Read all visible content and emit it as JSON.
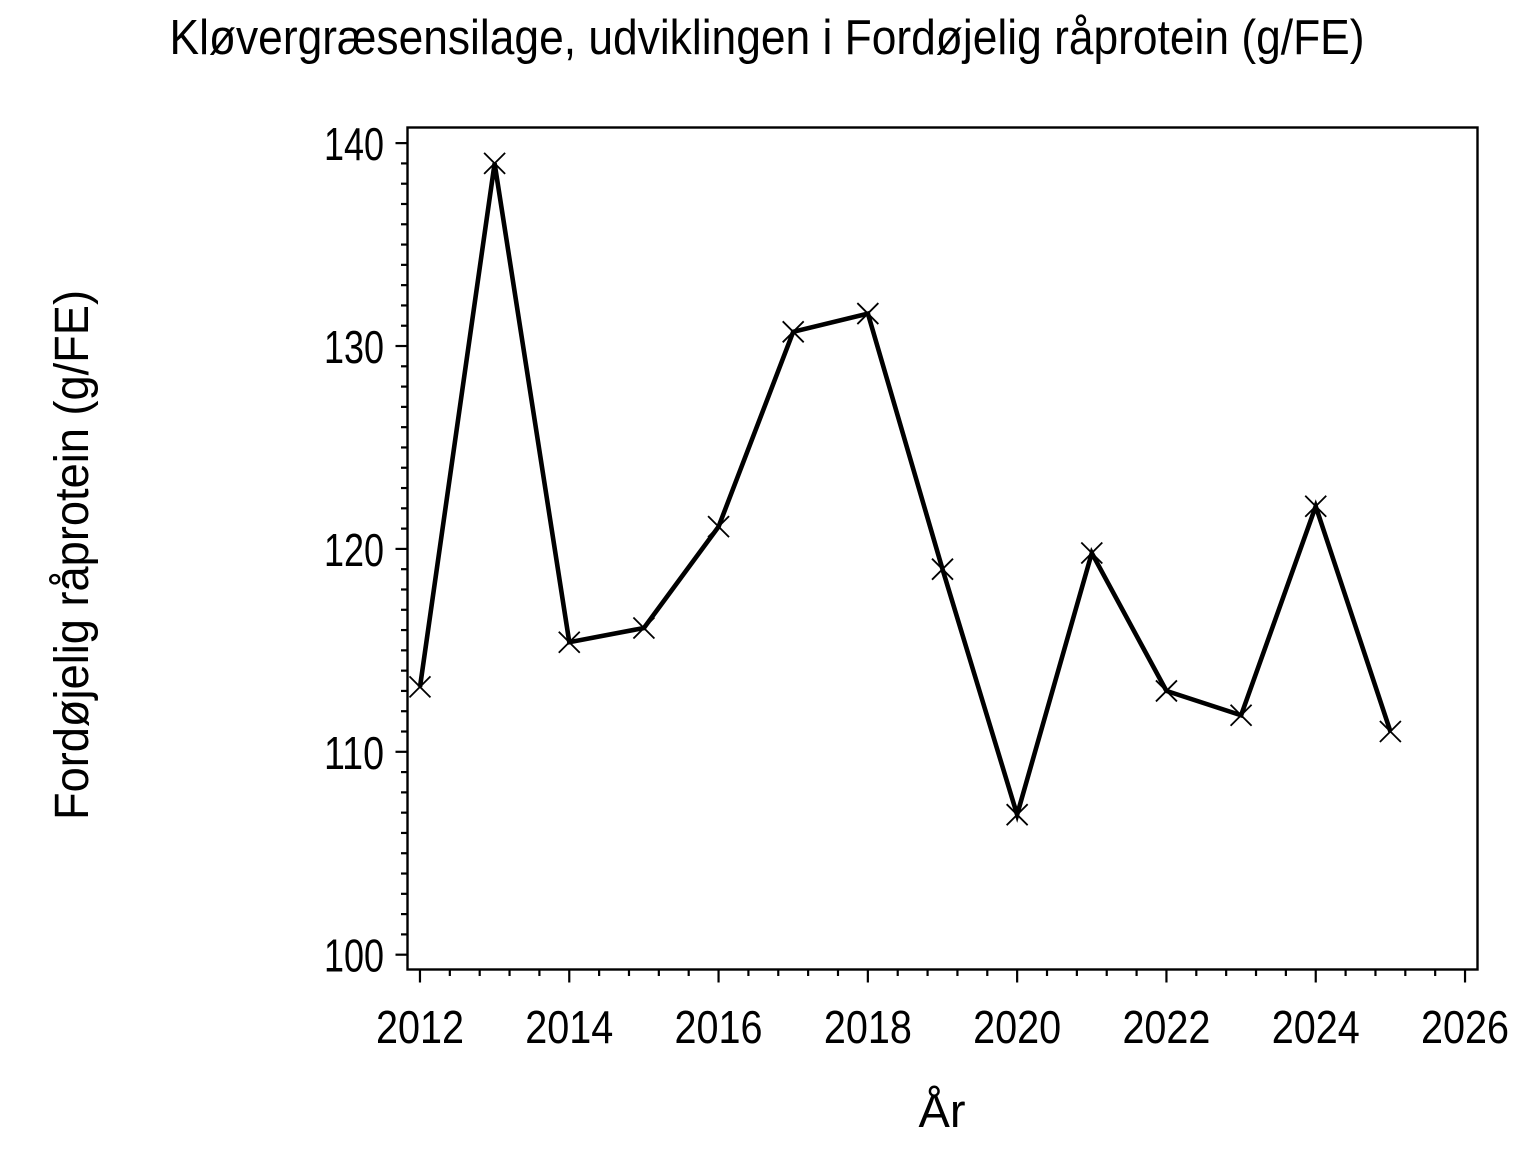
{
  "chart_data": {
    "type": "line",
    "title": "Kløvergræsensilage, udviklingen i Fordøjelig råprotein (g/FE)",
    "xlabel": "År",
    "ylabel": "Fordøjelig råprotein (g/FE)",
    "series": [
      {
        "name": "Fordøjelig råprotein (g/FE)",
        "x": [
          2012,
          2013,
          2014,
          2015,
          2016,
          2017,
          2018,
          2019,
          2020,
          2021,
          2022,
          2023,
          2024,
          2025
        ],
        "values": [
          113.2,
          139.0,
          115.4,
          116.1,
          121.1,
          130.7,
          131.6,
          119.0,
          106.9,
          119.8,
          113.0,
          111.8,
          122.1,
          111.0
        ]
      }
    ],
    "marker": "x",
    "line_color": "#000000",
    "background_color": "#ffffff",
    "grid": false,
    "legend": false,
    "xlim": [
      2011.833,
      2026.167
    ],
    "ylim": [
      99.27,
      140.77
    ],
    "x_ticks_major": [
      2012,
      2014,
      2016,
      2018,
      2020,
      2022,
      2024,
      2026
    ],
    "x_tick_labels": [
      "2012",
      "2014",
      "2016",
      "2018",
      "2020",
      "2022",
      "2024",
      "2026"
    ],
    "x_minor_step": 0.4,
    "y_ticks_major": [
      100,
      110,
      120,
      130,
      140
    ],
    "y_tick_labels": [
      "100",
      "110",
      "120",
      "130",
      "140"
    ],
    "y_minor_step": 1
  }
}
